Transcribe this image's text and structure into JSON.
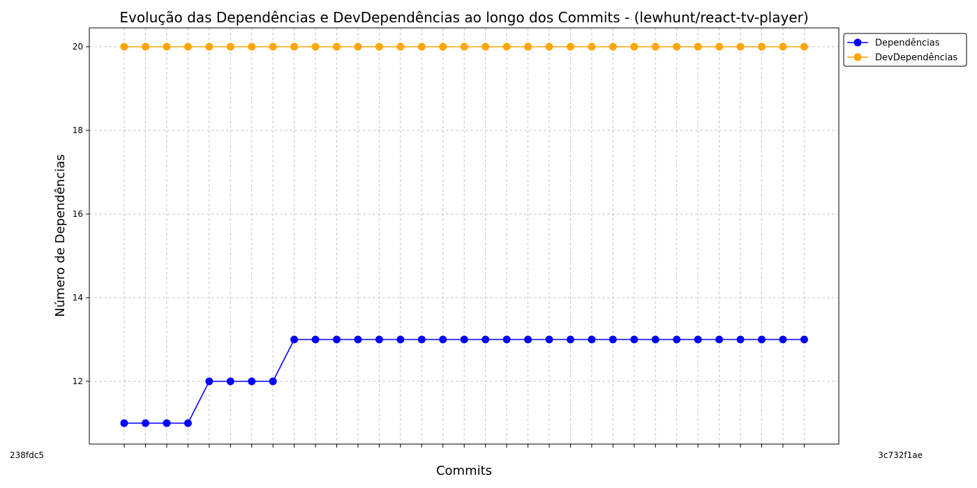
{
  "chart_data": {
    "type": "line",
    "title": "Evolução das Dependências e DevDependências ao longo dos Commits - (lewhunt/react-tv-player)",
    "xlabel": "Commits",
    "ylabel": "Número de Dependências",
    "ylim": [
      10.5,
      20.45
    ],
    "yticks": [
      12,
      14,
      16,
      18,
      20
    ],
    "grid": true,
    "legend_position": "outside-top-right",
    "x_first_label": "238fdc5",
    "x_last_label": "3c732f1ae",
    "x_labels_overlapping": true,
    "series": [
      {
        "name": "Dependências",
        "color": "#0000ff",
        "values": [
          11,
          11,
          11,
          11,
          12,
          12,
          12,
          12,
          13,
          13,
          13,
          13,
          13,
          13,
          13,
          13,
          13,
          13,
          13,
          13,
          13,
          13,
          13,
          13,
          13,
          13,
          13,
          13,
          13,
          13,
          13,
          13,
          13
        ]
      },
      {
        "name": "DevDependências",
        "color": "#ffa500",
        "values": [
          20,
          20,
          20,
          20,
          20,
          20,
          20,
          20,
          20,
          20,
          20,
          20,
          20,
          20,
          20,
          20,
          20,
          20,
          20,
          20,
          20,
          20,
          20,
          20,
          20,
          20,
          20,
          20,
          20,
          20,
          20,
          20,
          20
        ]
      }
    ]
  }
}
